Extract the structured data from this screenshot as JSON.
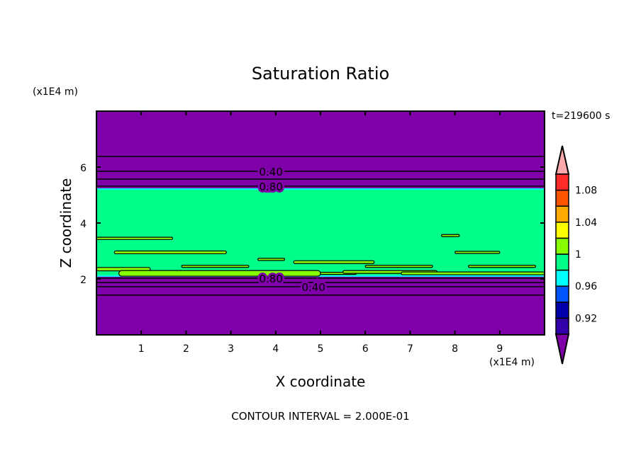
{
  "chart_data": {
    "type": "contour",
    "title": "Saturation Ratio",
    "xlabel": "X coordinate",
    "ylabel": "Z coordinate",
    "x_unit_label": "(x1E4 m)",
    "y_unit_label": "(x1E4 m)",
    "xlim": [
      0,
      10
    ],
    "ylim": [
      0,
      8
    ],
    "x_ticks": [
      1,
      2,
      3,
      4,
      5,
      6,
      7,
      8,
      9
    ],
    "y_ticks": [
      2,
      4,
      6
    ],
    "time_label": "t=219600 s",
    "footer": "CONTOUR INTERVAL = 2.000E-01",
    "grid": false,
    "background_fill_color": "#7f00a8",
    "band": {
      "z_bottom": 2.13,
      "z_top": 5.19,
      "color": "#00ff88",
      "edge_color": "#00ffff"
    },
    "contour_lines_z": [
      6.38,
      5.85,
      5.57,
      5.32,
      2.03,
      1.87,
      1.72,
      1.42
    ],
    "contour_labels": [
      {
        "text": "0.40",
        "x": 3.5,
        "z": 5.85
      },
      {
        "text": "0.80",
        "x": 3.5,
        "z": 5.32
      },
      {
        "text": "0.80",
        "x": 3.5,
        "z": 2.03
      },
      {
        "text": "0.40",
        "x": 3.5,
        "z": 1.72
      }
    ],
    "patches_above_1": [
      {
        "x0": 0.0,
        "x1": 1.7,
        "z": 3.45,
        "h": 0.08
      },
      {
        "x0": 0.4,
        "x1": 2.9,
        "z": 2.95,
        "h": 0.1
      },
      {
        "x0": 3.6,
        "x1": 4.2,
        "z": 2.7,
        "h": 0.06
      },
      {
        "x0": 4.4,
        "x1": 6.2,
        "z": 2.6,
        "h": 0.1
      },
      {
        "x0": 1.9,
        "x1": 3.4,
        "z": 2.45,
        "h": 0.05
      },
      {
        "x0": 6.0,
        "x1": 7.5,
        "z": 2.45,
        "h": 0.06
      },
      {
        "x0": 8.3,
        "x1": 9.8,
        "z": 2.45,
        "h": 0.06
      },
      {
        "x0": 4.0,
        "x1": 5.8,
        "z": 2.2,
        "h": 0.07
      },
      {
        "x0": 0.0,
        "x1": 1.2,
        "z": 2.35,
        "h": 0.12
      },
      {
        "x0": 0.5,
        "x1": 5.0,
        "z": 2.2,
        "h": 0.2
      },
      {
        "x0": 5.5,
        "x1": 7.6,
        "z": 2.25,
        "h": 0.1
      },
      {
        "x0": 6.8,
        "x1": 10.0,
        "z": 2.2,
        "h": 0.1
      },
      {
        "x0": 8.0,
        "x1": 9.0,
        "z": 2.95,
        "h": 0.06
      },
      {
        "x0": 7.7,
        "x1": 8.1,
        "z": 3.55,
        "h": 0.05
      }
    ],
    "colorbar": {
      "levels": [
        0.9,
        0.92,
        0.94,
        0.96,
        0.98,
        1.0,
        1.02,
        1.04,
        1.06,
        1.08,
        1.1
      ],
      "tick_labels": [
        "0.92",
        "0.96",
        "1",
        "1.04",
        "1.08"
      ],
      "under_color": "#7f00a8",
      "over_color": "#ffaaaa",
      "colors": [
        "#3300aa",
        "#0000aa",
        "#0055ff",
        "#00ffff",
        "#00ff88",
        "#88ff00",
        "#ffff00",
        "#ffaa00",
        "#ff5500",
        "#ff2a2a"
      ]
    }
  }
}
